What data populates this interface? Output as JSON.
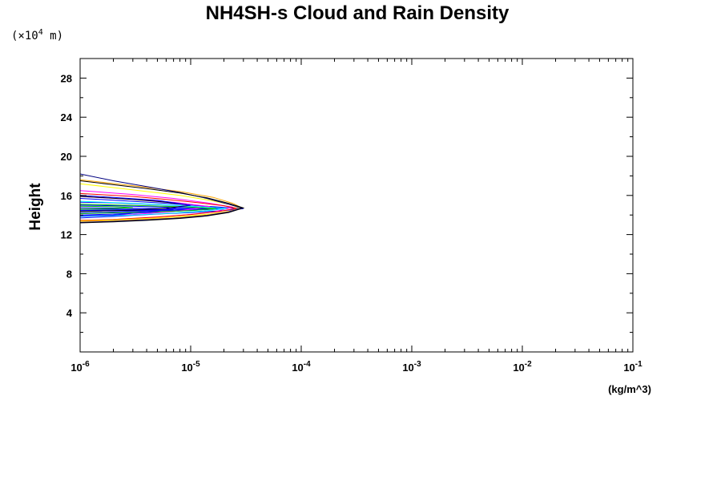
{
  "chart_data": {
    "type": "line",
    "title": "NH4SH-s Cloud and Rain Density",
    "xlabel": "(kg/m^3)",
    "ylabel": "Height",
    "y_unit_prefix": "(×10",
    "y_unit_exponent": "4",
    "y_unit_suffix": " m)",
    "x_scale": "log",
    "xlim": [
      1e-06,
      0.1
    ],
    "ylim": [
      0,
      30
    ],
    "x_ticks": [
      {
        "base": "10",
        "exp": "-6"
      },
      {
        "base": "10",
        "exp": "-5"
      },
      {
        "base": "10",
        "exp": "-4"
      },
      {
        "base": "10",
        "exp": "-3"
      },
      {
        "base": "10",
        "exp": "-2"
      },
      {
        "base": "10",
        "exp": "-1"
      }
    ],
    "y_ticks": [
      "4",
      "8",
      "12",
      "16",
      "20",
      "24",
      "28"
    ],
    "y_tick_values": [
      4,
      8,
      12,
      16,
      20,
      24,
      28
    ],
    "grid": false,
    "series": [
      {
        "color": "#0000ff",
        "x": [
          1e-06,
          1.5e-06,
          3e-06,
          6e-06,
          1.2e-05,
          2.2e-05,
          3e-05,
          2e-05,
          1e-05,
          5e-06,
          2e-06,
          1e-06
        ],
        "y": [
          15.7,
          15.6,
          15.4,
          15.2,
          14.95,
          14.75,
          14.65,
          14.45,
          14.25,
          14.1,
          13.85,
          13.7
        ]
      },
      {
        "color": "#0000ff",
        "x": [
          1e-06,
          2e-06,
          4e-06,
          8e-06,
          1.4e-05,
          2e-05,
          1.4e-05,
          8e-06,
          4e-06,
          2e-06,
          1e-06
        ],
        "y": [
          15.3,
          15.25,
          15.1,
          14.95,
          14.8,
          14.7,
          14.55,
          14.4,
          14.25,
          14.1,
          14.0
        ]
      },
      {
        "color": "#0000ff",
        "x": [
          1e-06,
          2e-06,
          4e-06,
          8e-06,
          1.5e-05,
          8e-06,
          4e-06,
          2e-06,
          1e-06
        ],
        "y": [
          15.0,
          14.95,
          14.85,
          14.75,
          14.65,
          14.5,
          14.4,
          14.3,
          14.2
        ]
      },
      {
        "color": "#0000ff",
        "x": [
          1e-06,
          3e-06,
          6e-06,
          1.1e-05,
          6e-06,
          3e-06,
          1e-06
        ],
        "y": [
          14.75,
          14.7,
          14.65,
          14.6,
          14.5,
          14.45,
          14.4
        ]
      },
      {
        "color": "#0000ff",
        "x": [
          1e-06,
          3e-06,
          7e-06,
          3e-06,
          1e-06
        ],
        "y": [
          14.6,
          14.58,
          14.55,
          14.5,
          14.48
        ]
      },
      {
        "color": "#ff00ff",
        "x": [
          1e-06,
          3e-06,
          7e-06,
          1.4e-05,
          2.4e-05,
          1.6e-05,
          8e-06,
          4e-06,
          2e-06,
          1e-06
        ],
        "y": [
          16.5,
          16.1,
          15.7,
          15.25,
          14.8,
          14.3,
          13.95,
          13.7,
          13.55,
          13.4
        ]
      },
      {
        "color": "#ff00ff",
        "x": [
          1e-06,
          3e-06,
          7e-06,
          1.5e-05,
          7e-06,
          3e-06,
          1e-06
        ],
        "y": [
          15.9,
          15.6,
          15.3,
          14.85,
          14.35,
          14.05,
          13.85
        ]
      },
      {
        "color": "#ff0000",
        "x": [
          1e-06,
          3e-06,
          6e-06,
          1.2e-05,
          2e-05,
          2.6e-05,
          1.8e-05,
          1e-05,
          5e-06,
          2e-06,
          1e-06
        ],
        "y": [
          16.2,
          15.9,
          15.6,
          15.25,
          14.95,
          14.7,
          14.35,
          14.05,
          13.8,
          13.55,
          13.45
        ]
      },
      {
        "color": "#ffff00",
        "x": [
          1e-06,
          2e-06,
          4e-06,
          8e-06,
          1.5e-05,
          2.3e-05,
          2.8e-05,
          2.3e-05,
          1.5e-05,
          8e-06,
          4e-06,
          2e-06,
          1e-06
        ],
        "y": [
          17.2,
          16.8,
          16.4,
          16.0,
          15.5,
          15.05,
          14.7,
          14.4,
          14.1,
          13.85,
          13.65,
          13.5,
          13.4
        ]
      },
      {
        "color": "#ffa500",
        "x": [
          1e-06,
          3e-06,
          8e-06,
          1.6e-05,
          2.4e-05,
          2.9e-05,
          2.2e-05,
          1.4e-05,
          7e-06,
          3e-06,
          1e-06
        ],
        "y": [
          17.6,
          17.0,
          16.4,
          15.8,
          15.2,
          14.75,
          14.35,
          14.0,
          13.7,
          13.5,
          13.35
        ]
      },
      {
        "color": "#00ffff",
        "x": [
          1e-06,
          3e-06,
          7e-06,
          1.3e-05,
          2.1e-05,
          1.3e-05,
          7e-06,
          3e-06,
          1e-06
        ],
        "y": [
          15.4,
          15.2,
          15.0,
          14.8,
          14.65,
          14.4,
          14.2,
          14.0,
          13.85
        ]
      },
      {
        "color": "#00c000",
        "x": [
          1e-06,
          4e-06,
          1e-05,
          1.7e-05,
          1e-05,
          4e-06,
          1e-06
        ],
        "y": [
          15.1,
          14.95,
          14.8,
          14.65,
          14.45,
          14.3,
          14.15
        ]
      },
      {
        "color": "#000080",
        "x": [
          1e-06,
          2e-06,
          4e-06,
          8e-06,
          1.4e-05,
          2.2e-05,
          2.9e-05,
          2.2e-05,
          1.4e-05,
          8e-06,
          4e-06,
          2e-06,
          1e-06
        ],
        "y": [
          18.2,
          17.5,
          16.9,
          16.3,
          15.7,
          15.1,
          14.72,
          14.3,
          13.95,
          13.7,
          13.5,
          13.35,
          13.25
        ]
      },
      {
        "color": "#000000",
        "x": [
          1e-06,
          2e-06,
          4e-06,
          8e-06,
          1.4e-05,
          2.2e-05,
          3e-05,
          2.2e-05,
          1.4e-05,
          8e-06,
          4e-06,
          2e-06,
          1e-06
        ],
        "y": [
          17.5,
          17.1,
          16.7,
          16.25,
          15.75,
          15.2,
          14.72,
          14.25,
          13.9,
          13.65,
          13.45,
          13.3,
          13.2
        ]
      },
      {
        "color": "#000000",
        "x": [
          1e-06,
          3e-06,
          6e-06,
          1e-05,
          6e-06,
          3e-06,
          1e-06
        ],
        "y": [
          15.9,
          15.6,
          15.3,
          15.0,
          14.7,
          14.5,
          14.35
        ]
      },
      {
        "color": "#00c000",
        "x": [
          1e-06,
          2e-06,
          3e-06,
          2e-06,
          1e-06
        ],
        "y": [
          14.9,
          14.85,
          14.75,
          14.65,
          14.6
        ]
      },
      {
        "color": "#0000ff",
        "x": [
          1e-06,
          2e-06,
          5e-06,
          1e-05,
          5e-06,
          2e-06,
          1e-06
        ],
        "y": [
          16.0,
          15.8,
          15.5,
          15.0,
          14.4,
          14.0,
          13.9
        ]
      }
    ]
  }
}
